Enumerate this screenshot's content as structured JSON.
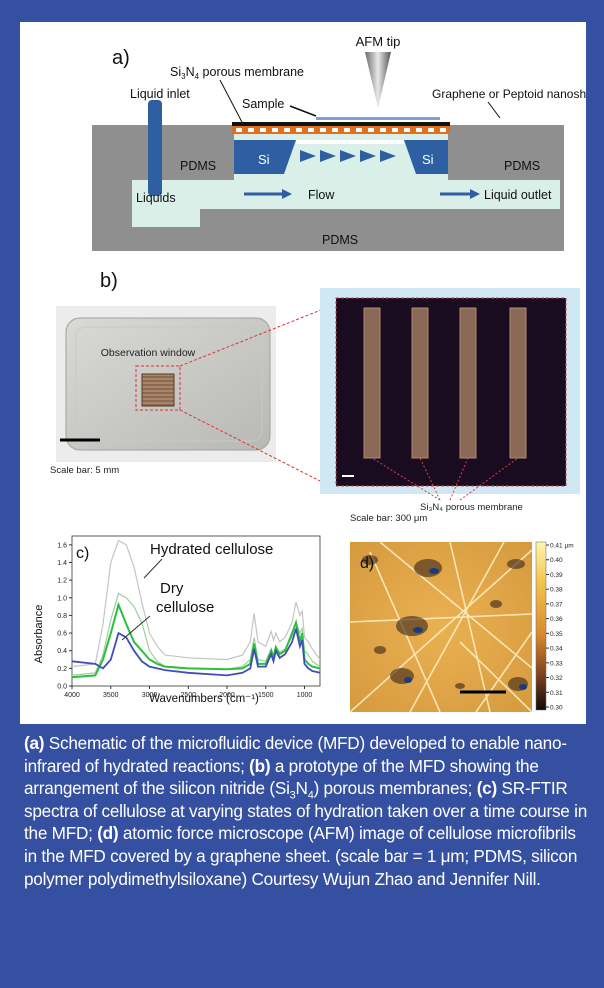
{
  "colors": {
    "background": "#3550a0",
    "panel": "#ffffff",
    "caption_text": "#ffffff"
  },
  "panel_a": {
    "label": "a)",
    "afm_tip": "AFM tip",
    "membrane_pre": "Si",
    "membrane_sub1": "3",
    "membrane_mid": "N",
    "membrane_sub2": "4",
    "membrane_post": " porous membrane",
    "sample": "Sample",
    "nanosheet": "Graphene or Peptoid nanosheet",
    "liquid_inlet": "Liquid inlet",
    "pdms_left": "PDMS",
    "si_left": "Si",
    "si_right": "Si",
    "pdms_right": "PDMS",
    "liquids": "Liquids",
    "flow": "Flow",
    "liquid_outlet": "Liquid outlet",
    "pdms_bottom": "PDMS"
  },
  "panel_b": {
    "label": "b)",
    "observation_window": "Observation window",
    "scale_left": "Scale bar: 5 mm",
    "scale_right": "Scale bar: 300 μm",
    "membrane_label": "Si₃N₄ porous membrane"
  },
  "panel_c": {
    "label": "c)",
    "hydrated": "Hydrated cellulose",
    "dry_line1": "Dry",
    "dry_line2": "cellulose",
    "ylabel": "Absorbance",
    "xlabel": "Wavenumbers (cm⁻¹)",
    "x_ticks": [
      "4000",
      "3500",
      "3000",
      "2500",
      "2000",
      "1500",
      "1000"
    ],
    "y_ticks": [
      "0.0",
      "0.2",
      "0.4",
      "0.6",
      "0.8",
      "1.0",
      "1.2",
      "1.4",
      "1.6"
    ]
  },
  "panel_d": {
    "label": "d)",
    "colorbar_ticks": [
      "0.41 μm",
      "0.40",
      "0.39",
      "0.38",
      "0.37",
      "0.36",
      "0.35",
      "0.34",
      "0.33",
      "0.32",
      "0.31",
      "0.30"
    ]
  },
  "chart_data": [
    {
      "type": "line",
      "xlabel": "Wavenumbers (cm⁻¹)",
      "ylabel": "Absorbance",
      "xlim": [
        4000,
        800
      ],
      "ylim": [
        0,
        1.7
      ],
      "x": [
        4000,
        3700,
        3600,
        3500,
        3400,
        3300,
        3200,
        3100,
        3000,
        2900,
        2800,
        2500,
        2000,
        1800,
        1700,
        1650,
        1600,
        1500,
        1430,
        1400,
        1370,
        1320,
        1250,
        1160,
        1110,
        1060,
        1030,
        1000,
        950,
        900,
        800
      ],
      "series": [
        {
          "name": "Hydrated cellulose",
          "values": [
            0.22,
            0.25,
            0.7,
            1.4,
            1.65,
            1.6,
            1.35,
            0.95,
            0.6,
            0.45,
            0.35,
            0.32,
            0.3,
            0.35,
            0.5,
            0.82,
            0.5,
            0.45,
            0.62,
            0.52,
            0.6,
            0.5,
            0.55,
            0.72,
            0.95,
            0.8,
            0.85,
            0.55,
            0.5,
            0.42,
            0.3
          ]
        },
        {
          "values": [
            0.12,
            0.15,
            0.35,
            0.75,
            1.05,
            1.0,
            0.9,
            0.72,
            0.4,
            0.28,
            0.22,
            0.2,
            0.19,
            0.22,
            0.3,
            0.55,
            0.3,
            0.28,
            0.42,
            0.35,
            0.44,
            0.38,
            0.42,
            0.56,
            0.72,
            0.6,
            0.65,
            0.4,
            0.35,
            0.28,
            0.22
          ]
        },
        {
          "values": [
            0.1,
            0.12,
            0.3,
            0.6,
            0.92,
            0.7,
            0.5,
            0.4,
            0.3,
            0.25,
            0.22,
            0.2,
            0.19,
            0.2,
            0.25,
            0.48,
            0.25,
            0.25,
            0.4,
            0.32,
            0.44,
            0.36,
            0.4,
            0.6,
            0.72,
            0.5,
            0.6,
            0.3,
            0.25,
            0.22,
            0.2
          ]
        },
        {
          "name": "Dry cellulose",
          "values": [
            0.28,
            0.25,
            0.2,
            0.3,
            0.6,
            0.55,
            0.4,
            0.28,
            0.22,
            0.2,
            0.18,
            0.15,
            0.12,
            0.15,
            0.2,
            0.42,
            0.22,
            0.22,
            0.36,
            0.28,
            0.4,
            0.32,
            0.36,
            0.5,
            0.65,
            0.45,
            0.52,
            0.25,
            0.2,
            0.17,
            0.15
          ]
        }
      ]
    }
  ],
  "caption": {
    "a_label": "(a)",
    "a_text": " Schematic of the microfluidic device (MFD) developed to enable nano-infrared of hydrated reactions; ",
    "b_label": "(b)",
    "b_text1": " a prototype of the MFD showing the arrangement of the silicon nitride (Si",
    "sub3": "3",
    "n_text": "N",
    "sub4": "4",
    "b_text2": ") porous membranes; ",
    "c_label": "(c)",
    "c_text": " SR-FTIR spectra of cellulose at varying states of hydration taken over a time course in the MFD; ",
    "d_label": "(d)",
    "d_text": " atomic force microscope (AFM) image of cellulose microfibrils in the MFD covered by a graphene sheet. (scale bar = 1 μm; PDMS, silicon polymer polydimethylsiloxane)  Courtesy Wujun Zhao and Jennifer Nill."
  }
}
